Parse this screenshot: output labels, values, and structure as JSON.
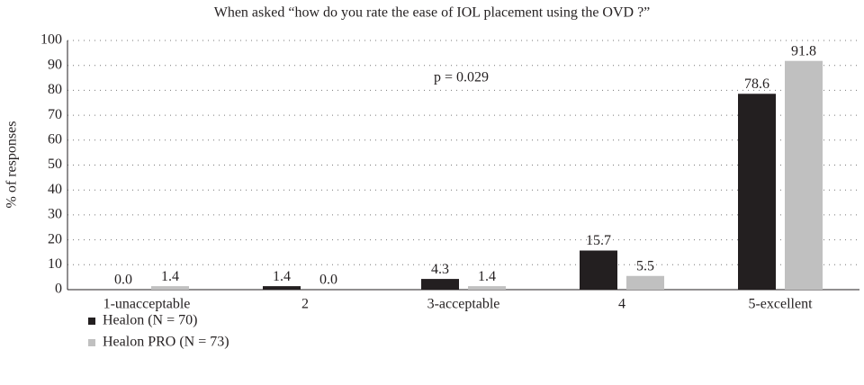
{
  "chart_data": {
    "type": "bar",
    "title": "When asked “how do you rate the ease of IOL placement using the OVD ?”",
    "y_label": "% of responses",
    "annotation": "p = 0.029",
    "categories": [
      "1-unacceptable",
      "2",
      "3-acceptable",
      "4",
      "5-excellent"
    ],
    "series": [
      {
        "name": "Healon (N = 70)",
        "color": "#231f20",
        "values": [
          0,
          1.4,
          4.3,
          15.7,
          78.6
        ],
        "value_labels": [
          "0.0",
          "1.4",
          "4.3",
          "15.7",
          "78.6"
        ]
      },
      {
        "name": "Healon PRO (N = 73)",
        "color": "#c0c0c0",
        "values": [
          1.4,
          0,
          1.4,
          5.5,
          91.8
        ],
        "value_labels": [
          "1.4",
          "0.0",
          "1.4",
          "5.5",
          "91.8"
        ]
      }
    ],
    "ylim": [
      0,
      100
    ],
    "yticks": [
      0,
      10,
      20,
      30,
      40,
      50,
      60,
      70,
      80,
      90,
      100
    ],
    "grid": true
  }
}
